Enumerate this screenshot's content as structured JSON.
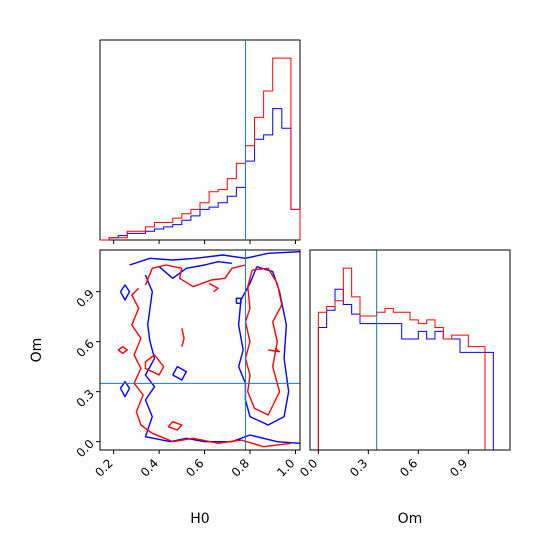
{
  "chart_data": {
    "type": "corner",
    "parameters": [
      "H0",
      "Om"
    ],
    "truths": {
      "H0": 0.78,
      "Om": 0.35
    },
    "colors": {
      "series_a": "#0000ff",
      "series_b": "#ff0000",
      "truth": "#1f77b4"
    },
    "panels": [
      {
        "id": "hist-H0",
        "type": "histogram",
        "parameter": "H0",
        "xlim": [
          0.14,
          1.02
        ],
        "bin_edges": [
          0.14,
          0.18,
          0.22,
          0.26,
          0.3,
          0.34,
          0.38,
          0.42,
          0.46,
          0.5,
          0.54,
          0.58,
          0.62,
          0.66,
          0.7,
          0.74,
          0.78,
          0.82,
          0.86,
          0.9,
          0.94,
          0.98,
          1.02
        ],
        "series": [
          {
            "color_key": "series_a",
            "counts": [
              0,
              1,
              2,
              3,
              3,
              4,
              5,
              6,
              7,
              9,
              11,
              14,
              15,
              17,
              20,
              24,
              36,
              46,
              48,
              60,
              51,
              14
            ]
          },
          {
            "color_key": "series_b",
            "counts": [
              0,
              1,
              1,
              4,
              4,
              6,
              8,
              8,
              10,
              12,
              14,
              17,
              22,
              23,
              28,
              35,
              43,
              56,
              68,
              83,
              83,
              14
            ]
          }
        ],
        "xticks": [
          0.2,
          0.4,
          0.6,
          0.8,
          1.0
        ],
        "truth": 0.78
      },
      {
        "id": "contour-H0-Om",
        "type": "contour2d",
        "x": "H0",
        "y": "Om",
        "xlim": [
          0.14,
          1.02
        ],
        "ylim": [
          -0.05,
          1.15
        ],
        "xticks": [
          0.2,
          0.4,
          0.6,
          0.8,
          1.0
        ],
        "yticks": [
          0.0,
          0.3,
          0.6,
          0.9
        ],
        "xlabel": "H0",
        "ylabel": "Om",
        "truth": {
          "x": 0.78,
          "y": 0.35
        },
        "contours": [
          {
            "color_key": "series_a",
            "points": [
              [
                0.27,
                1.06
              ],
              [
                0.36,
                1.1
              ],
              [
                0.46,
                1.09
              ],
              [
                0.56,
                1.1
              ],
              [
                0.68,
                1.12
              ],
              [
                0.78,
                1.1
              ],
              [
                0.88,
                1.13
              ],
              [
                1.02,
                1.14
              ]
            ]
          },
          {
            "color_key": "series_a",
            "points": [
              [
                0.4,
                1.05
              ],
              [
                0.46,
                0.98
              ],
              [
                0.52,
                1.04
              ],
              [
                0.6,
                1.06
              ],
              [
                0.66,
                1.08
              ],
              [
                0.72,
                1.07
              ]
            ]
          },
          {
            "color_key": "series_a",
            "points": [
              [
                0.34,
                1.0
              ],
              [
                0.37,
                0.9
              ],
              [
                0.36,
                0.8
              ],
              [
                0.35,
                0.7
              ],
              [
                0.36,
                0.6
              ],
              [
                0.38,
                0.5
              ],
              [
                0.34,
                0.4
              ],
              [
                0.38,
                0.33
              ],
              [
                0.34,
                0.25
              ],
              [
                0.37,
                0.15
              ],
              [
                0.34,
                0.03
              ],
              [
                0.45,
                0.0
              ],
              [
                0.52,
                0.02
              ],
              [
                0.6,
                0.0
              ],
              [
                0.72,
                0.0
              ],
              [
                0.8,
                0.04
              ],
              [
                0.92,
                0.0
              ],
              [
                1.02,
                -0.01
              ]
            ]
          },
          {
            "color_key": "series_a",
            "points": [
              [
                0.83,
                1.05
              ],
              [
                0.8,
                0.95
              ],
              [
                0.76,
                0.85
              ],
              [
                0.75,
                0.7
              ],
              [
                0.77,
                0.55
              ],
              [
                0.75,
                0.45
              ],
              [
                0.78,
                0.35
              ],
              [
                0.78,
                0.25
              ],
              [
                0.8,
                0.15
              ],
              [
                0.88,
                0.1
              ],
              [
                0.95,
                0.15
              ],
              [
                0.97,
                0.3
              ],
              [
                0.95,
                0.5
              ],
              [
                0.96,
                0.7
              ],
              [
                0.93,
                0.9
              ],
              [
                0.9,
                1.02
              ],
              [
                0.83,
                1.05
              ]
            ]
          },
          {
            "color_key": "series_a",
            "points": [
              [
                0.46,
                0.4
              ],
              [
                0.5,
                0.37
              ],
              [
                0.52,
                0.42
              ],
              [
                0.48,
                0.45
              ],
              [
                0.46,
                0.4
              ]
            ]
          },
          {
            "color_key": "series_a",
            "points": [
              [
                0.23,
                0.32
              ],
              [
                0.25,
                0.27
              ],
              [
                0.27,
                0.32
              ],
              [
                0.25,
                0.36
              ],
              [
                0.23,
                0.32
              ]
            ]
          },
          {
            "color_key": "series_a",
            "points": [
              [
                0.23,
                0.9
              ],
              [
                0.25,
                0.85
              ],
              [
                0.27,
                0.9
              ],
              [
                0.25,
                0.94
              ],
              [
                0.23,
                0.9
              ]
            ]
          },
          {
            "color_key": "series_a",
            "points": [
              [
                0.74,
                0.83
              ],
              [
                0.76,
                0.83
              ],
              [
                0.76,
                0.86
              ],
              [
                0.74,
                0.86
              ],
              [
                0.74,
                0.83
              ]
            ]
          },
          {
            "color_key": "series_b",
            "points": [
              [
                0.34,
                0.94
              ],
              [
                0.37,
                1.04
              ],
              [
                0.43,
                1.06
              ],
              [
                0.5,
                1.04
              ],
              [
                0.49,
                0.98
              ],
              [
                0.55,
                0.93
              ],
              [
                0.63,
                0.97
              ],
              [
                0.69,
                0.98
              ],
              [
                0.72,
                1.04
              ],
              [
                0.78,
                1.06
              ]
            ]
          },
          {
            "color_key": "series_b",
            "points": [
              [
                0.31,
                0.92
              ],
              [
                0.28,
                0.88
              ],
              [
                0.31,
                0.8
              ],
              [
                0.28,
                0.7
              ],
              [
                0.32,
                0.62
              ],
              [
                0.29,
                0.52
              ],
              [
                0.32,
                0.44
              ],
              [
                0.29,
                0.35
              ],
              [
                0.33,
                0.28
              ],
              [
                0.3,
                0.18
              ],
              [
                0.32,
                0.1
              ],
              [
                0.37,
                0.05
              ],
              [
                0.46,
                0.0
              ],
              [
                0.55,
                0.02
              ],
              [
                0.66,
                -0.01
              ],
              [
                0.76,
                0.01
              ],
              [
                0.86,
                -0.03
              ],
              [
                0.98,
                -0.01
              ]
            ]
          },
          {
            "color_key": "series_b",
            "points": [
              [
                0.81,
                1.03
              ],
              [
                0.79,
                0.93
              ],
              [
                0.8,
                0.8
              ],
              [
                0.78,
                0.72
              ],
              [
                0.8,
                0.6
              ],
              [
                0.78,
                0.5
              ],
              [
                0.8,
                0.4
              ],
              [
                0.79,
                0.3
              ],
              [
                0.82,
                0.2
              ],
              [
                0.88,
                0.16
              ],
              [
                0.93,
                0.3
              ],
              [
                0.9,
                0.45
              ],
              [
                0.92,
                0.6
              ],
              [
                0.9,
                0.72
              ],
              [
                0.94,
                0.82
              ],
              [
                0.92,
                0.95
              ],
              [
                0.88,
                1.04
              ],
              [
                0.81,
                1.03
              ]
            ]
          },
          {
            "color_key": "series_b",
            "points": [
              [
                0.34,
                0.48
              ],
              [
                0.38,
                0.52
              ],
              [
                0.42,
                0.45
              ],
              [
                0.4,
                0.4
              ],
              [
                0.34,
                0.44
              ],
              [
                0.34,
                0.48
              ]
            ]
          },
          {
            "color_key": "series_b",
            "points": [
              [
                0.22,
                0.55
              ],
              [
                0.24,
                0.53
              ],
              [
                0.26,
                0.55
              ],
              [
                0.24,
                0.57
              ],
              [
                0.22,
                0.55
              ]
            ]
          },
          {
            "color_key": "series_b",
            "points": [
              [
                0.5,
                0.68
              ],
              [
                0.51,
                0.62
              ],
              [
                0.5,
                0.57
              ]
            ]
          },
          {
            "color_key": "series_b",
            "points": [
              [
                0.44,
                0.09
              ],
              [
                0.48,
                0.07
              ],
              [
                0.5,
                0.1
              ],
              [
                0.46,
                0.12
              ],
              [
                0.44,
                0.09
              ]
            ]
          },
          {
            "color_key": "series_b",
            "points": [
              [
                0.62,
                0.95
              ],
              [
                0.66,
                0.92
              ],
              [
                0.64,
                0.9
              ]
            ]
          },
          {
            "color_key": "series_b",
            "points": [
              [
                0.88,
                0.55
              ],
              [
                0.93,
                0.54
              ],
              [
                0.91,
                0.56
              ]
            ]
          }
        ]
      },
      {
        "id": "hist-Om",
        "type": "histogram",
        "parameter": "Om",
        "xlim": [
          -0.05,
          1.15
        ],
        "bin_edges": [
          0.0,
          0.05,
          0.1,
          0.15,
          0.2,
          0.25,
          0.3,
          0.35,
          0.4,
          0.45,
          0.5,
          0.55,
          0.6,
          0.65,
          0.7,
          0.75,
          0.8,
          0.85,
          0.9,
          0.95,
          1.0,
          1.05,
          1.1
        ],
        "series": [
          {
            "color_key": "series_a",
            "counts": [
              64,
              73,
              84,
              76,
              71,
              66,
              66,
              66,
              66,
              66,
              58,
              58,
              62,
              58,
              62,
              58,
              58,
              51,
              51,
              51,
              51,
              0
            ]
          },
          {
            "color_key": "series_b",
            "counts": [
              72,
              75,
              78,
              95,
              80,
              70,
              70,
              72,
              74,
              72,
              72,
              68,
              66,
              68,
              64,
              58,
              60,
              60,
              54,
              54,
              0,
              0
            ]
          }
        ],
        "xticks": [
          0.0,
          0.3,
          0.6,
          0.9
        ],
        "xlabel": "Om",
        "truth": 0.35
      }
    ]
  }
}
